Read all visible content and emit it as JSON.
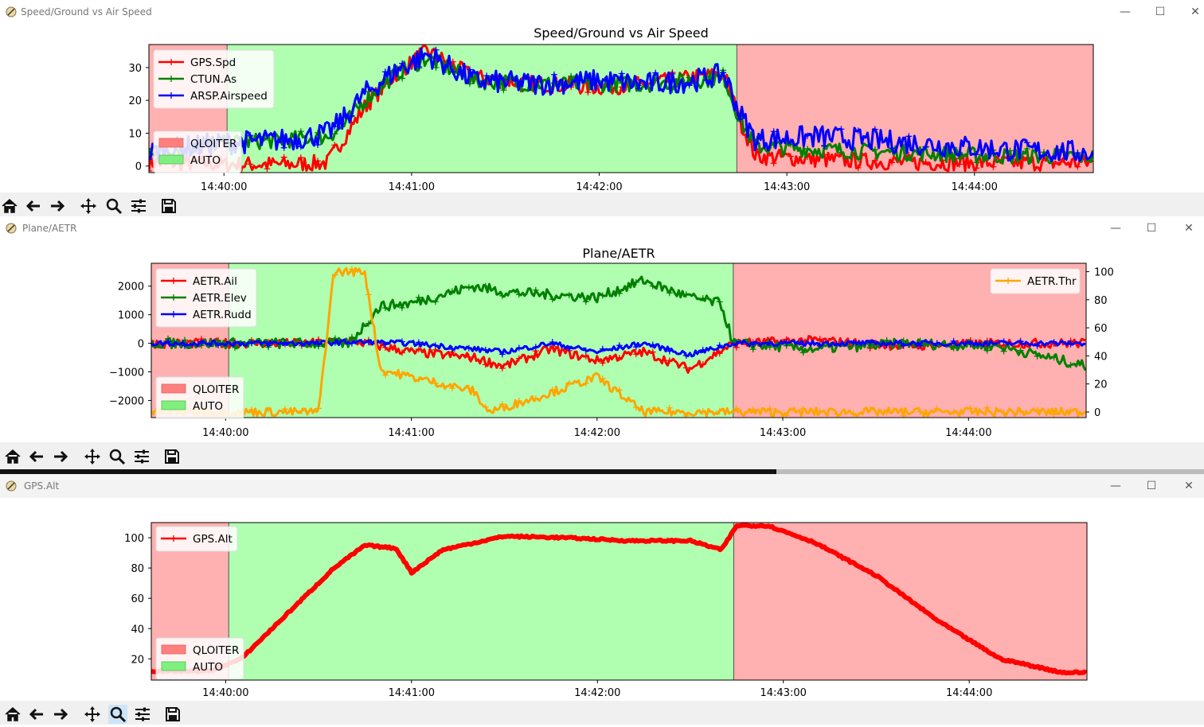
{
  "windows": [
    {
      "id": "speed",
      "title": "Speed/Ground vs Air Speed",
      "chart_data": {
        "type": "line",
        "title": "Speed/Ground vs Air Speed",
        "x_ticks": [
          "14:40:00",
          "14:41:00",
          "14:42:00",
          "14:43:00",
          "14:44:00"
        ],
        "xlim": [
          "14:39:36",
          "14:44:38"
        ],
        "y_ticks": [
          0,
          10,
          20,
          30
        ],
        "ylim": [
          -2,
          37
        ],
        "mode_regions": [
          {
            "mode": "QLOITER",
            "start": "14:39:36",
            "end": "14:40:01"
          },
          {
            "mode": "AUTO",
            "start": "14:40:01",
            "end": "14:42:44"
          },
          {
            "mode": "QLOITER",
            "start": "14:42:44",
            "end": "14:44:38"
          }
        ],
        "series": [
          {
            "name": "GPS.Spd",
            "color": "#ff0000",
            "x": [
              "14:39:36",
              "14:39:50",
              "14:40:00",
              "14:40:20",
              "14:40:33",
              "14:40:38",
              "14:40:45",
              "14:40:55",
              "14:41:05",
              "14:41:20",
              "14:41:40",
              "14:42:00",
              "14:42:15",
              "14:42:30",
              "14:42:40",
              "14:42:45",
              "14:42:50",
              "14:43:10",
              "14:43:40",
              "14:44:10",
              "14:44:38"
            ],
            "y": [
              1,
              1,
              0.5,
              0.5,
              1,
              8,
              18,
              28,
              35,
              27,
              25,
              24,
              25,
              27,
              28,
              14,
              3,
              2,
              1,
              1,
              1
            ]
          },
          {
            "name": "CTUN.As",
            "color": "#008000",
            "x": [
              "14:39:36",
              "14:39:50",
              "14:40:00",
              "14:40:20",
              "14:40:33",
              "14:40:38",
              "14:40:45",
              "14:40:55",
              "14:41:05",
              "14:41:20",
              "14:41:40",
              "14:42:00",
              "14:42:15",
              "14:42:30",
              "14:42:40",
              "14:42:45",
              "14:42:50",
              "14:43:10",
              "14:43:40",
              "14:44:10",
              "14:44:38"
            ],
            "y": [
              5,
              6,
              7,
              8,
              9,
              12,
              20,
              28,
              33,
              26,
              25,
              25,
              25,
              26,
              27,
              14,
              6,
              5,
              4,
              3,
              3
            ]
          },
          {
            "name": "ARSP.Airspeed",
            "color": "#0000ff",
            "x": [
              "14:39:36",
              "14:39:50",
              "14:40:00",
              "14:40:20",
              "14:40:33",
              "14:40:38",
              "14:40:45",
              "14:40:55",
              "14:41:05",
              "14:41:20",
              "14:41:40",
              "14:42:00",
              "14:42:15",
              "14:42:30",
              "14:42:40",
              "14:42:45",
              "14:42:50",
              "14:43:10",
              "14:43:40",
              "14:44:10",
              "14:44:38"
            ],
            "y": [
              4,
              6,
              7,
              8,
              10,
              14,
              22,
              29,
              34,
              26,
              25,
              26,
              25,
              26,
              28,
              16,
              8,
              9,
              7,
              5,
              4
            ]
          }
        ],
        "legend_series_position": "upper-left",
        "legend_modes_position": "lower-left"
      }
    },
    {
      "id": "aetr",
      "title": "Plane/AETR",
      "chart_data": {
        "type": "line",
        "title": "Plane/AETR",
        "x_ticks": [
          "14:40:00",
          "14:41:00",
          "14:42:00",
          "14:43:00",
          "14:44:00"
        ],
        "xlim": [
          "14:39:36",
          "14:44:38"
        ],
        "y_ticks": [
          -2000,
          -1000,
          0,
          1000,
          2000
        ],
        "y_tick_labels": [
          "−2000",
          "−1000",
          "0",
          "1000",
          "2000"
        ],
        "ylim": [
          -2600,
          2800
        ],
        "y2_ticks": [
          0,
          20,
          40,
          60,
          80,
          100
        ],
        "y2lim": [
          -4,
          106
        ],
        "mode_regions": [
          {
            "mode": "QLOITER",
            "start": "14:39:36",
            "end": "14:40:01"
          },
          {
            "mode": "AUTO",
            "start": "14:40:01",
            "end": "14:42:44"
          },
          {
            "mode": "QLOITER",
            "start": "14:42:44",
            "end": "14:44:38"
          }
        ],
        "series": [
          {
            "name": "AETR.Ail",
            "color": "#ff0000",
            "axis": "left",
            "x": [
              "14:39:36",
              "14:40:00",
              "14:40:30",
              "14:40:40",
              "14:41:00",
              "14:41:20",
              "14:41:30",
              "14:41:45",
              "14:42:00",
              "14:42:15",
              "14:42:30",
              "14:42:44",
              "14:43:10",
              "14:43:40",
              "14:44:10",
              "14:44:38"
            ],
            "y": [
              0,
              0,
              0,
              100,
              -300,
              -500,
              -800,
              -200,
              -600,
              -300,
              -900,
              0,
              100,
              -100,
              0,
              0
            ]
          },
          {
            "name": "AETR.Elev",
            "color": "#008000",
            "axis": "left",
            "x": [
              "14:39:36",
              "14:40:00",
              "14:40:30",
              "14:40:40",
              "14:40:50",
              "14:41:00",
              "14:41:20",
              "14:41:30",
              "14:41:45",
              "14:42:00",
              "14:42:15",
              "14:42:30",
              "14:42:40",
              "14:42:44",
              "14:43:10",
              "14:43:40",
              "14:44:10",
              "14:44:38"
            ],
            "y": [
              0,
              0,
              0,
              0,
              1300,
              1400,
              2000,
              1800,
              1700,
              1600,
              2200,
              1600,
              1400,
              0,
              -200,
              0,
              -100,
              -800
            ]
          },
          {
            "name": "AETR.Rudd",
            "color": "#0000ff",
            "axis": "left",
            "x": [
              "14:39:36",
              "14:40:00",
              "14:40:30",
              "14:40:40",
              "14:41:00",
              "14:41:20",
              "14:41:30",
              "14:41:45",
              "14:42:00",
              "14:42:15",
              "14:42:30",
              "14:42:44",
              "14:43:10",
              "14:43:40",
              "14:44:10",
              "14:44:38"
            ],
            "y": [
              0,
              0,
              0,
              50,
              0,
              -200,
              -300,
              0,
              -300,
              0,
              -400,
              0,
              0,
              0,
              0,
              0
            ]
          },
          {
            "name": "AETR.Thr",
            "color": "#ffa500",
            "axis": "right",
            "x": [
              "14:39:36",
              "14:40:30",
              "14:40:35",
              "14:40:45",
              "14:40:50",
              "14:41:00",
              "14:41:20",
              "14:41:25",
              "14:41:40",
              "14:42:00",
              "14:42:15",
              "14:42:30",
              "14:42:44",
              "14:43:00",
              "14:44:38"
            ],
            "y": [
              0,
              0,
              100,
              100,
              30,
              25,
              15,
              0,
              10,
              25,
              0,
              0,
              0,
              0,
              0
            ]
          }
        ],
        "legend_series_position": "upper-left",
        "legend_right_position": "upper-right",
        "legend_modes_position": "lower-left"
      }
    },
    {
      "id": "alt",
      "title": "GPS.Alt",
      "chart_data": {
        "type": "line",
        "title": "",
        "x_ticks": [
          "14:40:00",
          "14:41:00",
          "14:42:00",
          "14:43:00",
          "14:44:00"
        ],
        "xlim": [
          "14:39:36",
          "14:44:38"
        ],
        "y_ticks": [
          20,
          40,
          60,
          80,
          100
        ],
        "ylim": [
          6,
          110
        ],
        "mode_regions": [
          {
            "mode": "QLOITER",
            "start": "14:39:36",
            "end": "14:40:01"
          },
          {
            "mode": "AUTO",
            "start": "14:40:01",
            "end": "14:42:44"
          },
          {
            "mode": "QLOITER",
            "start": "14:42:44",
            "end": "14:44:38"
          }
        ],
        "series": [
          {
            "name": "GPS.Alt",
            "color": "#ff0000",
            "x": [
              "14:39:36",
              "14:39:55",
              "14:40:05",
              "14:40:20",
              "14:40:35",
              "14:40:45",
              "14:40:55",
              "14:41:00",
              "14:41:10",
              "14:41:30",
              "14:41:50",
              "14:42:10",
              "14:42:30",
              "14:42:40",
              "14:42:45",
              "14:42:55",
              "14:43:10",
              "14:43:30",
              "14:43:50",
              "14:44:10",
              "14:44:30",
              "14:44:38"
            ],
            "y": [
              12,
              12,
              20,
              50,
              80,
              95,
              93,
              77,
              92,
              101,
              100,
              98,
              98,
              92,
              108,
              108,
              97,
              75,
              45,
              20,
              11,
              11
            ]
          }
        ],
        "legend_series_position": "upper-left",
        "legend_modes_position": "lower-left"
      }
    }
  ],
  "legend_modes": [
    {
      "label": "QLOITER",
      "color": "#ff7f7f"
    },
    {
      "label": "AUTO",
      "color": "#7fef7f"
    }
  ],
  "region_colors": {
    "QLOITER": "#ffb0b0",
    "AUTO": "#b0ffb0"
  },
  "toolbar_icons": [
    "home-icon",
    "back-arrow-icon",
    "forward-arrow-icon",
    "pan-icon",
    "zoom-icon",
    "configure-subplots-icon",
    "save-icon"
  ]
}
